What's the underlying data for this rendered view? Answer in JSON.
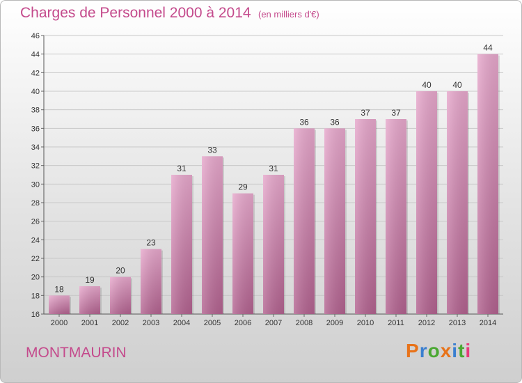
{
  "header": {
    "title": "Charges de Personnel 2000 à 2014",
    "subtitle": "(en milliers d'€)"
  },
  "footer": {
    "commune": "MONTMAURIN",
    "brand": "Proxiti",
    "brand_colors": [
      "#e8731a",
      "#3a7fd0",
      "#4aa832",
      "#e8731a",
      "#3a7fd0",
      "#4aa832",
      "#e83a7a"
    ]
  },
  "colors": {
    "accent": "#c44a8c",
    "bar_top": "#e7a8cc",
    "bar_bottom": "#b2628f"
  },
  "chart_data": {
    "type": "bar",
    "categories": [
      "2000",
      "2001",
      "2002",
      "2003",
      "2004",
      "2005",
      "2006",
      "2007",
      "2008",
      "2009",
      "2010",
      "2011",
      "2012",
      "2013",
      "2014"
    ],
    "values": [
      18,
      19,
      20,
      23,
      31,
      33,
      29,
      31,
      36,
      36,
      37,
      37,
      40,
      40,
      44
    ],
    "ylim": [
      16,
      46
    ],
    "yticks": [
      16,
      18,
      20,
      22,
      24,
      26,
      28,
      30,
      32,
      34,
      36,
      38,
      40,
      42,
      44,
      46
    ],
    "grid": "horizontal",
    "xlabel": "",
    "ylabel": ""
  }
}
